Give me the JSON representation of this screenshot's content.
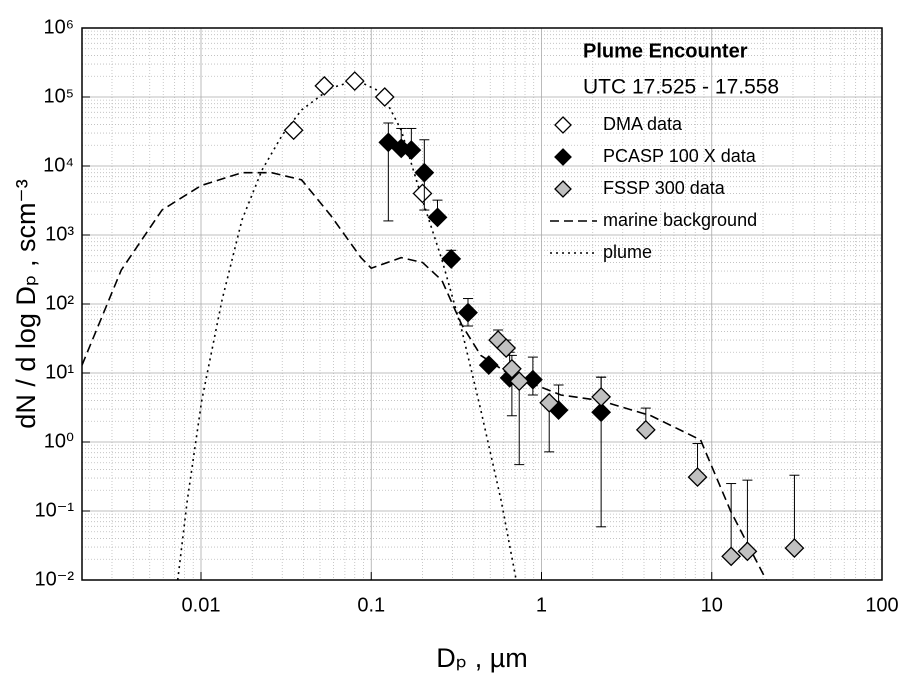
{
  "chart_data": {
    "type": "scatter",
    "x_label": "Dₚ ,  µm",
    "y_label": "dN / d log Dₚ ,  scm⁻³",
    "legend_title": "Plume Encounter",
    "legend_subtitle": "UTC 17.525 - 17.558",
    "legend": "upper right",
    "log_x": true,
    "log_y": true,
    "grid": true,
    "xlim": [
      0.002,
      100
    ],
    "ylim": [
      0.01,
      1000000
    ],
    "xticks": [
      0.01,
      0.1,
      1,
      10,
      100
    ],
    "yticks": [
      {
        "value": 0.01,
        "label": "10⁻²"
      },
      {
        "value": 0.1,
        "label": "10⁻¹"
      },
      {
        "value": 1,
        "label": "10⁰"
      },
      {
        "value": 10,
        "label": "10¹"
      },
      {
        "value": 100,
        "label": "10²"
      },
      {
        "value": 1000,
        "label": "10³"
      },
      {
        "value": 10000,
        "label": "10⁴"
      },
      {
        "value": 100000,
        "label": "10⁵"
      },
      {
        "value": 1000000,
        "label": "10⁶"
      }
    ],
    "series": [
      {
        "name": "DMA data",
        "color": "#ffffff",
        "x": [
          0.035,
          0.053,
          0.08,
          0.12,
          0.2
        ],
        "values": [
          33000,
          145000,
          170000,
          100000,
          4000
        ],
        "lower": [
          null,
          null,
          null,
          null,
          null
        ],
        "upper": [
          null,
          null,
          null,
          null,
          null
        ]
      },
      {
        "name": "PCASP 100 X data",
        "color": "#000000",
        "x": [
          0.126,
          0.15,
          0.172,
          0.205,
          0.245,
          0.295,
          0.37,
          0.49,
          0.65,
          0.89,
          1.26,
          2.24
        ],
        "values": [
          22000,
          18000,
          17000,
          8000,
          1800,
          450,
          75,
          13,
          8.5,
          8,
          2.9,
          2.7
        ],
        "lower": [
          1600,
          null,
          null,
          2300,
          null,
          null,
          48,
          null,
          null,
          4.8,
          null,
          0.059
        ],
        "upper": [
          42000,
          35000,
          35000,
          24000,
          3200,
          600,
          120,
          null,
          20,
          17,
          6.7,
          8.7
        ]
      },
      {
        "name": "FSSP 300 data",
        "color": "#c0c0c0",
        "x": [
          0.556,
          0.62,
          0.67,
          0.74,
          1.11,
          2.24,
          4.1,
          8.25,
          13,
          16.2,
          30.6
        ],
        "values": [
          30,
          23,
          11.5,
          7.6,
          3.7,
          4.5,
          1.5,
          0.31,
          0.022,
          0.026,
          0.029
        ],
        "lower": [
          null,
          null,
          2.4,
          0.47,
          0.72,
          null,
          null,
          null,
          null,
          null,
          null
        ],
        "upper": [
          42,
          30,
          18,
          null,
          null,
          8.7,
          3.1,
          0.95,
          0.25,
          0.28,
          0.33
        ]
      }
    ],
    "lines": [
      {
        "name": "marine background",
        "style": "dashed",
        "x": [
          0.002,
          0.0034,
          0.0059,
          0.01,
          0.0174,
          0.026,
          0.039,
          0.058,
          0.087,
          0.1,
          0.15,
          0.2,
          0.26,
          0.34,
          0.44,
          0.66,
          1.3,
          2.2,
          4.4,
          8.6,
          12.9,
          20.9
        ],
        "values": [
          13,
          310,
          2300,
          5200,
          8000,
          8000,
          6300,
          1900,
          470,
          330,
          470,
          400,
          220,
          50,
          18,
          9.3,
          4.8,
          4,
          2.4,
          1.07,
          0.1,
          0.01
        ]
      },
      {
        "name": "plume",
        "style": "dotted",
        "x": [
          0.0073,
          0.0083,
          0.0101,
          0.0133,
          0.0174,
          0.0228,
          0.03,
          0.039,
          0.058,
          0.082,
          0.115,
          0.15,
          0.2,
          0.26,
          0.34,
          0.44,
          0.58,
          0.71
        ],
        "values": [
          0.01,
          0.14,
          4,
          115,
          1650,
          8700,
          28000,
          65000,
          135000,
          175000,
          117000,
          33000,
          3200,
          440,
          42,
          2.9,
          0.14,
          0.01
        ]
      }
    ]
  }
}
